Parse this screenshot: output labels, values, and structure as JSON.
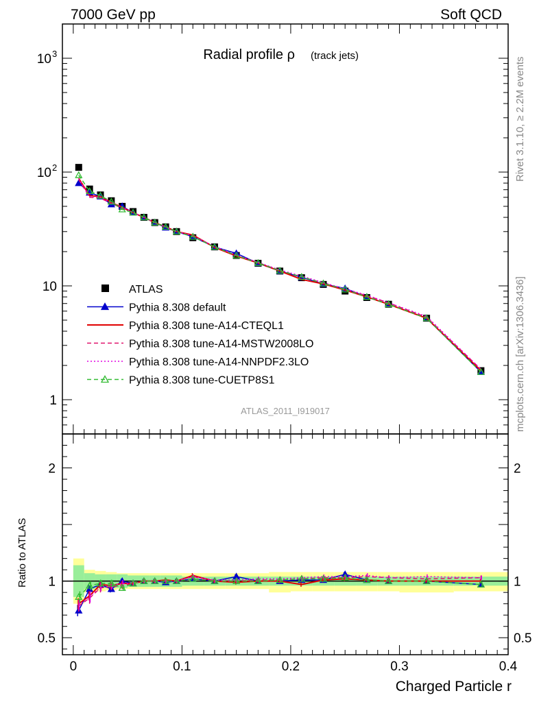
{
  "header": {
    "left": "7000 GeV pp",
    "right": "Soft QCD"
  },
  "side_labels": {
    "rivet": "Rivet 3.1.10, ≥ 2.2M events",
    "mcplots": "mcplots.cern.ch [arXiv:1306.3436]"
  },
  "chart_data": [
    {
      "type": "line",
      "panel": "main",
      "title_main": "Radial profile ρ",
      "title_sub": "(track jets)",
      "analysis_label": "ATLAS_2011_I919017",
      "yscale": "log",
      "ylim": [
        0.5,
        2000
      ],
      "xlim": [
        -0.01,
        0.4
      ],
      "yticks": [
        {
          "v": 1,
          "t": "1"
        },
        {
          "v": 10,
          "t": "10"
        },
        {
          "v": 100,
          "t": "10",
          "sup": "2"
        },
        {
          "v": 1000,
          "t": "10",
          "sup": "3"
        }
      ],
      "x": [
        0.005,
        0.015,
        0.025,
        0.035,
        0.045,
        0.055,
        0.065,
        0.075,
        0.085,
        0.095,
        0.11,
        0.13,
        0.15,
        0.17,
        0.19,
        0.21,
        0.23,
        0.25,
        0.27,
        0.29,
        0.325,
        0.375
      ],
      "series": [
        {
          "name": "ATLAS",
          "style": "data",
          "color": "#000000",
          "values": [
            110,
            71,
            63,
            56,
            50,
            45,
            40,
            36,
            33,
            30,
            26.5,
            22,
            18.5,
            15.8,
            13.5,
            11.8,
            10.3,
            9.0,
            7.9,
            6.9,
            5.2,
            1.8
          ]
        },
        {
          "name": "Pythia 8.308 default",
          "style": "solid-tri",
          "color": "#0000cc",
          "values": [
            80,
            66,
            61,
            52,
            50,
            44,
            40,
            36,
            32.5,
            30,
            27,
            22,
            19.3,
            15.8,
            13.5,
            11.9,
            10.4,
            9.5,
            8.0,
            6.9,
            5.2,
            1.75
          ]
        },
        {
          "name": "Pythia 8.308 tune-A14-CTEQL1",
          "style": "solid",
          "color": "#e00000",
          "values": [
            88,
            62,
            61,
            54,
            49,
            44,
            40,
            36,
            33,
            30,
            28,
            21.8,
            18.3,
            15.9,
            13.5,
            11.4,
            10.4,
            9.2,
            8.0,
            6.9,
            5.2,
            1.8
          ]
        },
        {
          "name": "Pythia 8.308 tune-A14-MSTW2008LO",
          "style": "dashed",
          "color": "#e0106a",
          "values": [
            86,
            60,
            59,
            53,
            48,
            44,
            40,
            36,
            33,
            30,
            27.5,
            22,
            18.5,
            16,
            13.7,
            12,
            10.6,
            9.3,
            8.2,
            7.1,
            5.3,
            1.85
          ]
        },
        {
          "name": "Pythia 8.308 tune-A14-NNPDF2.3LO",
          "style": "dotted",
          "color": "#e000e0",
          "values": [
            87,
            61,
            60,
            54,
            49,
            44,
            40,
            36,
            33,
            30,
            27.5,
            22.2,
            18.7,
            16.1,
            13.8,
            12.2,
            10.7,
            9.4,
            8.3,
            7.1,
            5.4,
            1.85
          ]
        },
        {
          "name": "Pythia 8.308 tune-CUETP8S1",
          "style": "dashed-tri",
          "color": "#33bb33",
          "values": [
            94,
            68,
            62,
            55,
            47,
            44,
            40,
            36,
            33,
            30,
            27,
            22,
            18.5,
            15.9,
            13.6,
            12,
            10.5,
            9.3,
            8.0,
            6.9,
            5.2,
            1.75
          ]
        }
      ]
    },
    {
      "type": "line",
      "panel": "ratio",
      "ylabel": "Ratio to ATLAS",
      "xlabel": "Charged Particle r",
      "ylim": [
        0.35,
        2.3
      ],
      "xlim": [
        -0.01,
        0.4
      ],
      "yticks": [
        {
          "v": 0.5,
          "t": "0.5"
        },
        {
          "v": 1,
          "t": "1"
        },
        {
          "v": 2,
          "t": "2"
        }
      ],
      "xticks": [
        {
          "v": 0,
          "t": "0"
        },
        {
          "v": 0.1,
          "t": "0.1"
        },
        {
          "v": 0.2,
          "t": "0.2"
        },
        {
          "v": 0.3,
          "t": "0.3"
        },
        {
          "v": 0.4,
          "t": "0.4"
        }
      ],
      "bins": [
        [
          0,
          0.01
        ],
        [
          0.01,
          0.02
        ],
        [
          0.02,
          0.03
        ],
        [
          0.03,
          0.04
        ],
        [
          0.04,
          0.05
        ],
        [
          0.05,
          0.06
        ],
        [
          0.06,
          0.07
        ],
        [
          0.07,
          0.08
        ],
        [
          0.08,
          0.09
        ],
        [
          0.09,
          0.1
        ],
        [
          0.1,
          0.12
        ],
        [
          0.12,
          0.14
        ],
        [
          0.14,
          0.16
        ],
        [
          0.16,
          0.18
        ],
        [
          0.18,
          0.2
        ],
        [
          0.2,
          0.22
        ],
        [
          0.22,
          0.24
        ],
        [
          0.24,
          0.26
        ],
        [
          0.26,
          0.28
        ],
        [
          0.28,
          0.3
        ],
        [
          0.3,
          0.35
        ],
        [
          0.35,
          0.4
        ]
      ],
      "band_stat": [
        [
          0.86,
          1.14
        ],
        [
          0.93,
          1.07
        ],
        [
          0.94,
          1.06
        ],
        [
          0.94,
          1.06
        ],
        [
          0.94,
          1.06
        ],
        [
          0.95,
          1.05
        ],
        [
          0.95,
          1.05
        ],
        [
          0.95,
          1.05
        ],
        [
          0.95,
          1.05
        ],
        [
          0.95,
          1.05
        ],
        [
          0.96,
          1.04
        ],
        [
          0.96,
          1.04
        ],
        [
          0.96,
          1.04
        ],
        [
          0.96,
          1.04
        ],
        [
          0.96,
          1.04
        ],
        [
          0.96,
          1.04
        ],
        [
          0.96,
          1.04
        ],
        [
          0.96,
          1.04
        ],
        [
          0.96,
          1.04
        ],
        [
          0.96,
          1.04
        ],
        [
          0.96,
          1.04
        ],
        [
          0.96,
          1.04
        ]
      ],
      "band_total": [
        [
          0.8,
          1.2
        ],
        [
          0.9,
          1.1
        ],
        [
          0.91,
          1.09
        ],
        [
          0.92,
          1.08
        ],
        [
          0.93,
          1.07
        ],
        [
          0.93,
          1.07
        ],
        [
          0.93,
          1.07
        ],
        [
          0.93,
          1.07
        ],
        [
          0.93,
          1.07
        ],
        [
          0.93,
          1.07
        ],
        [
          0.93,
          1.07
        ],
        [
          0.93,
          1.07
        ],
        [
          0.93,
          1.07
        ],
        [
          0.93,
          1.07
        ],
        [
          0.9,
          1.08
        ],
        [
          0.91,
          1.08
        ],
        [
          0.91,
          1.08
        ],
        [
          0.91,
          1.08
        ],
        [
          0.91,
          1.08
        ],
        [
          0.91,
          1.08
        ],
        [
          0.9,
          1.08
        ],
        [
          0.91,
          1.08
        ]
      ],
      "x": [
        0.005,
        0.015,
        0.025,
        0.035,
        0.045,
        0.055,
        0.065,
        0.075,
        0.085,
        0.095,
        0.11,
        0.13,
        0.15,
        0.17,
        0.19,
        0.21,
        0.23,
        0.25,
        0.27,
        0.29,
        0.325,
        0.375
      ],
      "series": [
        {
          "name": "Pythia 8.308 default",
          "style": "solid-tri",
          "color": "#0000cc",
          "values": [
            0.74,
            0.93,
            0.97,
            0.93,
            1.0,
            0.98,
            1.0,
            1.0,
            0.99,
            1.0,
            1.02,
            1.0,
            1.04,
            1.0,
            1.0,
            1.01,
            1.01,
            1.06,
            1.01,
            1.0,
            1.0,
            0.97
          ],
          "err": [
            0.05,
            0.04,
            0.03,
            0.03,
            0.02,
            0.02,
            0.02,
            0.02,
            0.02,
            0.02,
            0.02,
            0.02,
            0.02,
            0.02,
            0.02,
            0.02,
            0.02,
            0.02,
            0.02,
            0.02,
            0.02,
            0.02
          ]
        },
        {
          "name": "Pythia 8.308 tune-A14-CTEQL1",
          "style": "solid",
          "color": "#e00000",
          "values": [
            0.8,
            0.87,
            0.97,
            0.96,
            0.98,
            0.98,
            1.0,
            1.0,
            1.01,
            1.0,
            1.05,
            1.0,
            0.99,
            1.0,
            1.0,
            0.97,
            1.01,
            1.02,
            1.01,
            1.0,
            1.0,
            1.0
          ],
          "err": [
            0.05,
            0.04,
            0.03,
            0.03,
            0.02,
            0.02,
            0.02,
            0.02,
            0.02,
            0.02,
            0.02,
            0.02,
            0.02,
            0.02,
            0.02,
            0.02,
            0.02,
            0.02,
            0.02,
            0.02,
            0.02,
            0.02
          ]
        },
        {
          "name": "Pythia 8.308 tune-A14-MSTW2008LO",
          "style": "dashed",
          "color": "#e0106a",
          "values": [
            0.78,
            0.85,
            0.94,
            0.95,
            0.96,
            0.98,
            1.0,
            1.0,
            1.0,
            1.0,
            1.04,
            1.0,
            1.0,
            1.01,
            1.01,
            1.02,
            1.03,
            1.03,
            1.04,
            1.03,
            1.02,
            1.03
          ],
          "err": [
            0.05,
            0.05,
            0.04,
            0.03,
            0.03,
            0.02,
            0.02,
            0.02,
            0.02,
            0.02,
            0.02,
            0.02,
            0.02,
            0.02,
            0.02,
            0.02,
            0.02,
            0.02,
            0.02,
            0.02,
            0.02,
            0.02
          ]
        },
        {
          "name": "Pythia 8.308 tune-A14-NNPDF2.3LO",
          "style": "dotted",
          "color": "#e000e0",
          "values": [
            0.79,
            0.86,
            0.95,
            0.96,
            0.98,
            0.98,
            1.0,
            1.0,
            1.0,
            1.0,
            1.04,
            1.01,
            1.01,
            1.02,
            1.02,
            1.03,
            1.04,
            1.04,
            1.05,
            1.03,
            1.04,
            1.03
          ],
          "err": [
            0.05,
            0.05,
            0.04,
            0.03,
            0.03,
            0.02,
            0.02,
            0.02,
            0.02,
            0.02,
            0.02,
            0.02,
            0.02,
            0.02,
            0.02,
            0.02,
            0.02,
            0.02,
            0.02,
            0.02,
            0.02,
            0.02
          ]
        },
        {
          "name": "Pythia 8.308 tune-CUETP8S1",
          "style": "dashed-tri",
          "color": "#33bb33",
          "values": [
            0.86,
            0.96,
            0.98,
            0.98,
            0.94,
            0.98,
            1.0,
            1.0,
            1.0,
            1.0,
            1.02,
            1.0,
            1.0,
            1.0,
            1.01,
            1.02,
            1.02,
            1.03,
            1.01,
            1.0,
            1.0,
            0.97
          ],
          "err": [
            0.05,
            0.04,
            0.03,
            0.03,
            0.02,
            0.02,
            0.02,
            0.02,
            0.02,
            0.02,
            0.02,
            0.02,
            0.02,
            0.02,
            0.02,
            0.02,
            0.02,
            0.02,
            0.02,
            0.02,
            0.02,
            0.02
          ]
        }
      ]
    }
  ]
}
